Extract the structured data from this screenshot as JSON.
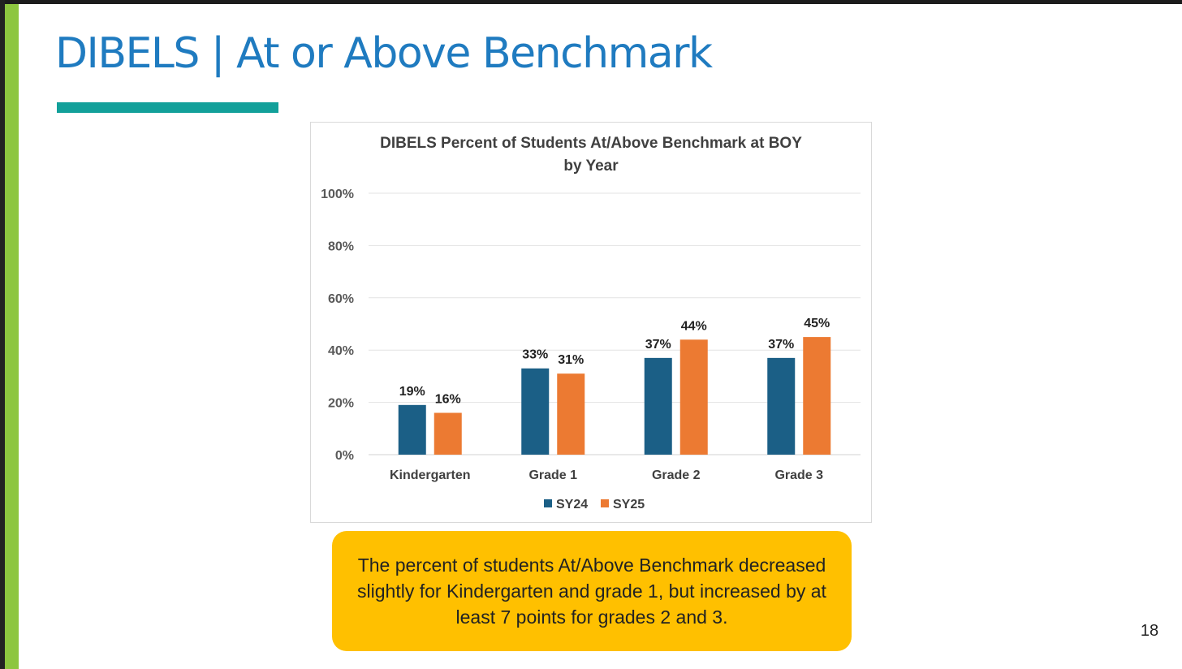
{
  "slide": {
    "title": "DIBELS | At or Above Benchmark",
    "page_number": "18",
    "callout_text": "The percent of students At/Above Benchmark decreased slightly for Kindergarten and grade 1, but increased by at least 7 points for grades 2 and 3."
  },
  "colors": {
    "title": "#1f7bc0",
    "accent_bar": "#12a09a",
    "side_bar": "#8dc63f",
    "callout_bg": "#ffc000"
  },
  "chart_data": {
    "type": "bar",
    "title": [
      "DIBELS Percent of Students At/Above Benchmark at BOY",
      "by Year"
    ],
    "categories": [
      "Kindergarten",
      "Grade 1",
      "Grade 2",
      "Grade 3"
    ],
    "series": [
      {
        "name": "SY24",
        "color": "#1b5f86",
        "values": [
          19,
          33,
          37,
          37
        ],
        "labels": [
          "19%",
          "33%",
          "37%",
          "37%"
        ]
      },
      {
        "name": "SY25",
        "color": "#ec7a32",
        "values": [
          16,
          31,
          44,
          45
        ],
        "labels": [
          "16%",
          "31%",
          "44%",
          "45%"
        ]
      }
    ],
    "ylim": [
      0,
      100
    ],
    "yticks": [
      0,
      20,
      40,
      60,
      80,
      100
    ],
    "ytick_labels": [
      "0%",
      "20%",
      "40%",
      "60%",
      "80%",
      "100%"
    ],
    "grid": true,
    "legend": "bottom-center",
    "xlabel": "",
    "ylabel": ""
  }
}
